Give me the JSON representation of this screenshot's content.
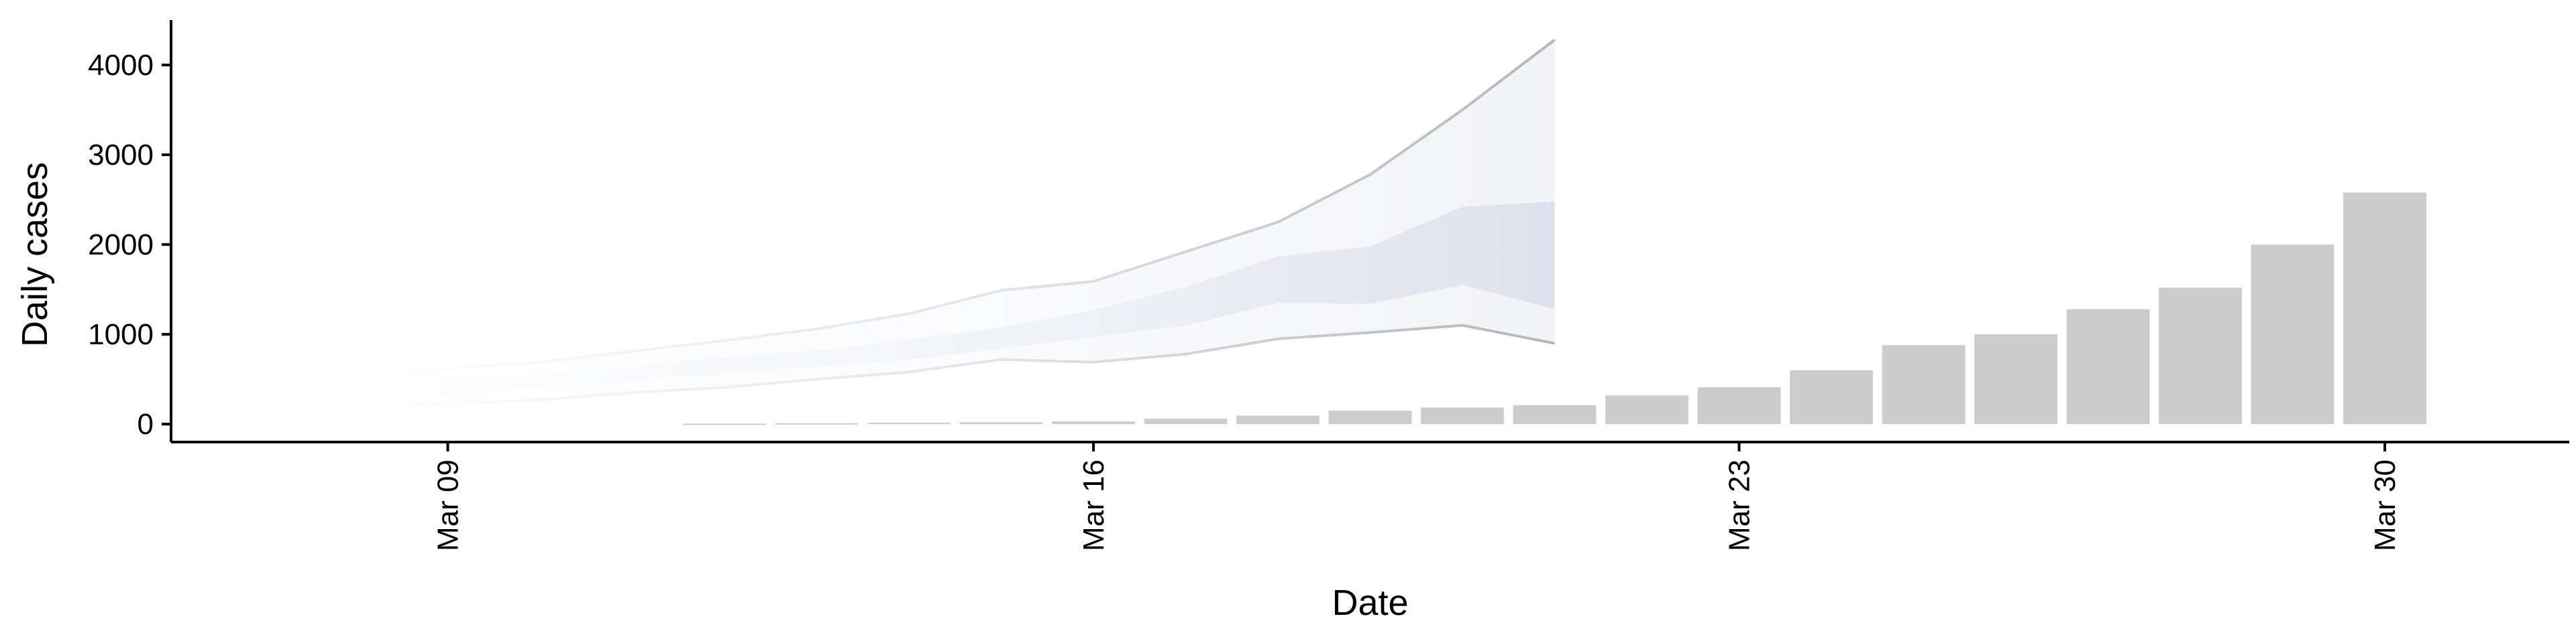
{
  "chart_data": {
    "type": "bar",
    "xlabel": "Date",
    "ylabel": "Daily cases",
    "ylim": [
      -200,
      4500
    ],
    "xlim": [
      "2020-03-06",
      "2020-04-01"
    ],
    "grid": false,
    "x_ticks": [
      {
        "date": "2020-03-09",
        "label": "Mar 09"
      },
      {
        "date": "2020-03-16",
        "label": "Mar 16"
      },
      {
        "date": "2020-03-23",
        "label": "Mar 23"
      },
      {
        "date": "2020-03-30",
        "label": "Mar 30"
      }
    ],
    "y_ticks": [
      0,
      1000,
      2000,
      3000,
      4000
    ],
    "bars": {
      "color": "#cccccc",
      "dates": [
        "2020-03-12",
        "2020-03-13",
        "2020-03-14",
        "2020-03-15",
        "2020-03-16",
        "2020-03-17",
        "2020-03-18",
        "2020-03-19",
        "2020-03-20",
        "2020-03-21",
        "2020-03-22",
        "2020-03-23",
        "2020-03-24",
        "2020-03-25",
        "2020-03-26",
        "2020-03-27",
        "2020-03-28",
        "2020-03-29",
        "2020-03-30"
      ],
      "values": [
        5,
        10,
        15,
        20,
        30,
        60,
        95,
        150,
        185,
        210,
        320,
        410,
        600,
        880,
        1000,
        1280,
        1520,
        2000,
        2580
      ]
    },
    "forecast": {
      "dates": [
        "2020-03-08",
        "2020-03-09",
        "2020-03-10",
        "2020-03-11",
        "2020-03-12",
        "2020-03-13",
        "2020-03-14",
        "2020-03-15",
        "2020-03-16",
        "2020-03-17",
        "2020-03-18",
        "2020-03-19",
        "2020-03-20",
        "2020-03-21"
      ],
      "lower90": [
        190,
        230,
        270,
        350,
        410,
        500,
        580,
        720,
        690,
        780,
        950,
        1020,
        1100,
        900
      ],
      "upper90": [
        550,
        620,
        690,
        810,
        930,
        1060,
        1230,
        1490,
        1590,
        1920,
        2250,
        2780,
        3500,
        4280
      ],
      "lower50": [
        250,
        320,
        400,
        480,
        560,
        640,
        720,
        840,
        970,
        1100,
        1350,
        1340,
        1550,
        1280
      ],
      "upper50": [
        380,
        460,
        560,
        650,
        750,
        820,
        940,
        1080,
        1270,
        1530,
        1870,
        1980,
        2420,
        2480
      ],
      "inner_color": "#c3c7dc",
      "outer_color": "#dfe1ec",
      "line_color": "#8e8e95"
    }
  }
}
